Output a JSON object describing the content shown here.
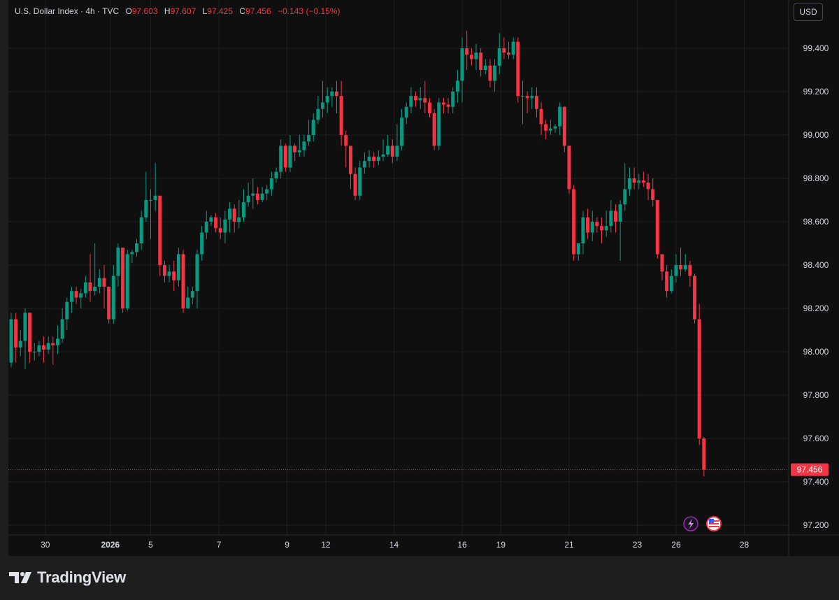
{
  "legend": {
    "symbol": "U.S. Dollar Index · 4h · TVC",
    "open_label": "O",
    "open": "97.603",
    "high_label": "H",
    "high": "97.607",
    "low_label": "L",
    "low": "97.425",
    "close_label": "C",
    "close": "97.456",
    "change": "−0.143 (−0.15%)"
  },
  "toolbar": {
    "currency": "USD"
  },
  "branding": {
    "name": "TradingView"
  },
  "colors": {
    "up": "#089981",
    "down": "#f23645",
    "background": "#0f0f0f",
    "grid": "#1f1f1f",
    "text": "#d1d4dc"
  },
  "icons": [
    "lightning-icon",
    "us-flag-icon"
  ],
  "chart_data": {
    "type": "candlestick",
    "ylim": [
      97.1,
      99.6
    ],
    "y_ticks": [
      "99.400",
      "99.200",
      "99.000",
      "98.800",
      "98.600",
      "98.400",
      "98.200",
      "98.000",
      "97.800",
      "97.600",
      "97.400",
      "97.200"
    ],
    "x_ticks": [
      {
        "label": "30",
        "x": 7.33
      },
      {
        "label": "2026",
        "x": 21.33
      },
      {
        "label": "5",
        "x": 30
      },
      {
        "label": "7",
        "x": 44.67
      },
      {
        "label": "9",
        "x": 59.33
      },
      {
        "label": "12",
        "x": 67.67
      },
      {
        "label": "14",
        "x": 82.33
      },
      {
        "label": "16",
        "x": 97
      },
      {
        "label": "19",
        "x": 105.33
      },
      {
        "label": "21",
        "x": 120
      },
      {
        "label": "23",
        "x": 134.67
      },
      {
        "label": "26",
        "x": 143
      },
      {
        "label": "28",
        "x": 157.67
      }
    ],
    "last_price": "97.456",
    "candles": [
      [
        97.95,
        98.15,
        98.18,
        97.93
      ],
      [
        98.15,
        98.02,
        98.18,
        97.95
      ],
      [
        98.02,
        98.05,
        98.1,
        97.98
      ],
      [
        98.05,
        98.18,
        98.2,
        97.92
      ],
      [
        98.18,
        98.0,
        98.18,
        97.95
      ],
      [
        98.0,
        98.0,
        98.04,
        97.96
      ],
      [
        98.0,
        98.03,
        98.05,
        97.98
      ],
      [
        98.03,
        98.01,
        98.07,
        97.95
      ],
      [
        98.01,
        98.04,
        98.07,
        97.99
      ],
      [
        98.04,
        98.03,
        98.07,
        97.94
      ],
      [
        98.03,
        98.06,
        98.12,
        97.99
      ],
      [
        98.06,
        98.15,
        98.2,
        98.04
      ],
      [
        98.15,
        98.23,
        98.25,
        98.1
      ],
      [
        98.23,
        98.28,
        98.3,
        98.18
      ],
      [
        98.28,
        98.25,
        98.3,
        98.22
      ],
      [
        98.25,
        98.27,
        98.29,
        98.2
      ],
      [
        98.27,
        98.32,
        98.35,
        98.25
      ],
      [
        98.32,
        98.28,
        98.45,
        98.23
      ],
      [
        98.28,
        98.3,
        98.5,
        98.26
      ],
      [
        98.3,
        98.34,
        98.38,
        98.27
      ],
      [
        98.34,
        98.3,
        98.4,
        98.2
      ],
      [
        98.3,
        98.15,
        98.3,
        98.13
      ],
      [
        98.15,
        98.35,
        98.4,
        98.13
      ],
      [
        98.35,
        98.48,
        98.5,
        98.3
      ],
      [
        98.48,
        98.2,
        98.48,
        98.18
      ],
      [
        98.2,
        98.45,
        98.47,
        98.19
      ],
      [
        98.45,
        98.46,
        98.47,
        98.41
      ],
      [
        98.46,
        98.5,
        98.52,
        98.44
      ],
      [
        98.5,
        98.62,
        98.65,
        98.47
      ],
      [
        98.62,
        98.7,
        98.83,
        98.6
      ],
      [
        98.7,
        98.7,
        98.75,
        98.52
      ],
      [
        98.7,
        98.72,
        98.87,
        98.65
      ],
      [
        98.72,
        98.4,
        98.72,
        98.35
      ],
      [
        98.4,
        98.35,
        98.42,
        98.32
      ],
      [
        98.35,
        98.37,
        98.4,
        98.32
      ],
      [
        98.37,
        98.33,
        98.42,
        98.28
      ],
      [
        98.33,
        98.45,
        98.48,
        98.3
      ],
      [
        98.45,
        98.2,
        98.47,
        98.18
      ],
      [
        98.2,
        98.25,
        98.3,
        98.23
      ],
      [
        98.25,
        98.28,
        98.3,
        98.22
      ],
      [
        98.28,
        98.45,
        98.47,
        98.2
      ],
      [
        98.45,
        98.55,
        98.58,
        98.42
      ],
      [
        98.55,
        98.6,
        98.65,
        98.52
      ],
      [
        98.6,
        98.62,
        98.63,
        98.58
      ],
      [
        98.62,
        98.57,
        98.64,
        98.55
      ],
      [
        98.57,
        98.55,
        98.62,
        98.52
      ],
      [
        98.55,
        98.61,
        98.65,
        98.5
      ],
      [
        98.61,
        98.66,
        98.69,
        98.55
      ],
      [
        98.66,
        98.6,
        98.68,
        98.55
      ],
      [
        98.6,
        98.62,
        98.7,
        98.57
      ],
      [
        98.62,
        98.69,
        98.75,
        98.6
      ],
      [
        98.69,
        98.72,
        98.78,
        98.67
      ],
      [
        98.72,
        98.73,
        98.8,
        98.66
      ],
      [
        98.73,
        98.7,
        98.76,
        98.68
      ],
      [
        98.7,
        98.73,
        98.76,
        98.69
      ],
      [
        98.73,
        98.75,
        98.77,
        98.7
      ],
      [
        98.75,
        98.8,
        98.83,
        98.72
      ],
      [
        98.8,
        98.83,
        98.85,
        98.78
      ],
      [
        98.83,
        98.95,
        98.98,
        98.8
      ],
      [
        98.95,
        98.85,
        98.96,
        98.83
      ],
      [
        98.85,
        98.95,
        99.0,
        98.83
      ],
      [
        98.95,
        98.92,
        98.96,
        98.88
      ],
      [
        98.92,
        98.93,
        99.0,
        98.9
      ],
      [
        98.93,
        98.97,
        99.0,
        98.9
      ],
      [
        98.97,
        99.0,
        99.07,
        98.95
      ],
      [
        99.0,
        99.07,
        99.1,
        98.97
      ],
      [
        99.07,
        99.12,
        99.18,
        99.05
      ],
      [
        99.12,
        99.15,
        99.25,
        99.08
      ],
      [
        99.15,
        99.18,
        99.22,
        99.1
      ],
      [
        99.18,
        99.2,
        99.22,
        99.13
      ],
      [
        99.2,
        99.18,
        99.25,
        99.1
      ],
      [
        99.18,
        99.0,
        99.25,
        98.95
      ],
      [
        99.0,
        98.95,
        99.02,
        98.85
      ],
      [
        98.95,
        98.82,
        98.95,
        98.75
      ],
      [
        98.82,
        98.72,
        98.85,
        98.7
      ],
      [
        98.72,
        98.85,
        98.88,
        98.7
      ],
      [
        98.85,
        98.88,
        98.92,
        98.82
      ],
      [
        98.88,
        98.9,
        98.93,
        98.85
      ],
      [
        98.9,
        98.88,
        98.92,
        98.85
      ],
      [
        98.88,
        98.9,
        98.93,
        98.86
      ],
      [
        98.9,
        98.91,
        98.98,
        98.88
      ],
      [
        98.91,
        98.95,
        99.0,
        98.9
      ],
      [
        98.95,
        98.9,
        98.98,
        98.87
      ],
      [
        98.9,
        98.95,
        99.05,
        98.88
      ],
      [
        98.95,
        99.08,
        99.12,
        98.93
      ],
      [
        99.08,
        99.13,
        99.15,
        99.05
      ],
      [
        99.13,
        99.18,
        99.22,
        99.1
      ],
      [
        99.18,
        99.16,
        99.2,
        99.13
      ],
      [
        99.16,
        99.17,
        99.22,
        99.12
      ],
      [
        99.17,
        99.15,
        99.25,
        99.1
      ],
      [
        99.15,
        99.1,
        99.17,
        99.08
      ],
      [
        99.1,
        98.95,
        99.12,
        98.93
      ],
      [
        98.95,
        99.15,
        99.17,
        98.93
      ],
      [
        99.15,
        99.14,
        99.17,
        99.1
      ],
      [
        99.14,
        99.13,
        99.17,
        99.1
      ],
      [
        99.13,
        99.2,
        99.22,
        99.1
      ],
      [
        99.2,
        99.25,
        99.3,
        99.15
      ],
      [
        99.25,
        99.4,
        99.45,
        99.15
      ],
      [
        99.4,
        99.37,
        99.48,
        99.3
      ],
      [
        99.37,
        99.35,
        99.4,
        99.32
      ],
      [
        99.35,
        99.38,
        99.42,
        99.3
      ],
      [
        99.38,
        99.3,
        99.4,
        99.27
      ],
      [
        99.3,
        99.32,
        99.35,
        99.28
      ],
      [
        99.32,
        99.25,
        99.35,
        99.22
      ],
      [
        99.25,
        99.32,
        99.35,
        99.2
      ],
      [
        99.32,
        99.4,
        99.47,
        99.28
      ],
      [
        99.4,
        99.38,
        99.45,
        99.35
      ],
      [
        99.38,
        99.37,
        99.43,
        99.35
      ],
      [
        99.37,
        99.43,
        99.45,
        99.35
      ],
      [
        99.43,
        99.18,
        99.45,
        99.15
      ],
      [
        99.18,
        99.18,
        99.25,
        99.05
      ],
      [
        99.18,
        99.17,
        99.2,
        99.1
      ],
      [
        99.17,
        99.18,
        99.22,
        99.12
      ],
      [
        99.18,
        99.12,
        99.22,
        99.08
      ],
      [
        99.12,
        99.05,
        99.15,
        99.0
      ],
      [
        99.05,
        99.02,
        99.07,
        98.98
      ],
      [
        99.02,
        99.03,
        99.07,
        99.0
      ],
      [
        99.03,
        99.04,
        99.05,
        99.01
      ],
      [
        99.04,
        99.13,
        99.15,
        99.0
      ],
      [
        99.13,
        98.95,
        99.13,
        98.92
      ],
      [
        98.95,
        98.75,
        98.95,
        98.73
      ],
      [
        98.75,
        98.45,
        98.77,
        98.42
      ],
      [
        98.45,
        98.5,
        98.5,
        98.42
      ],
      [
        98.5,
        98.62,
        98.65,
        98.45
      ],
      [
        98.62,
        98.55,
        98.66,
        98.52
      ],
      [
        98.55,
        98.6,
        98.65,
        98.51
      ],
      [
        98.6,
        98.58,
        98.62,
        98.55
      ],
      [
        98.58,
        98.56,
        98.62,
        98.5
      ],
      [
        98.56,
        98.58,
        98.65,
        98.53
      ],
      [
        98.58,
        98.65,
        98.7,
        98.55
      ],
      [
        98.65,
        98.6,
        98.68,
        98.55
      ],
      [
        98.6,
        98.68,
        98.7,
        98.42
      ],
      [
        98.68,
        98.75,
        98.87,
        98.65
      ],
      [
        98.75,
        98.8,
        98.85,
        98.72
      ],
      [
        98.8,
        98.78,
        98.85,
        98.75
      ],
      [
        98.78,
        98.79,
        98.82,
        98.75
      ],
      [
        98.79,
        98.78,
        98.83,
        98.76
      ],
      [
        98.78,
        98.75,
        98.82,
        98.7
      ],
      [
        98.75,
        98.7,
        98.8,
        98.67
      ],
      [
        98.7,
        98.45,
        98.7,
        98.43
      ],
      [
        98.45,
        98.37,
        98.45,
        98.33
      ],
      [
        98.37,
        98.28,
        98.4,
        98.25
      ],
      [
        98.28,
        98.35,
        98.38,
        98.27
      ],
      [
        98.35,
        98.4,
        98.45,
        98.32
      ],
      [
        98.4,
        98.38,
        98.48,
        98.35
      ],
      [
        98.38,
        98.4,
        98.45,
        98.37
      ],
      [
        98.4,
        98.35,
        98.42,
        98.3
      ],
      [
        98.35,
        98.15,
        98.36,
        98.13
      ],
      [
        98.15,
        97.6,
        98.22,
        97.57
      ],
      [
        97.6,
        97.456,
        97.607,
        97.425
      ]
    ]
  }
}
